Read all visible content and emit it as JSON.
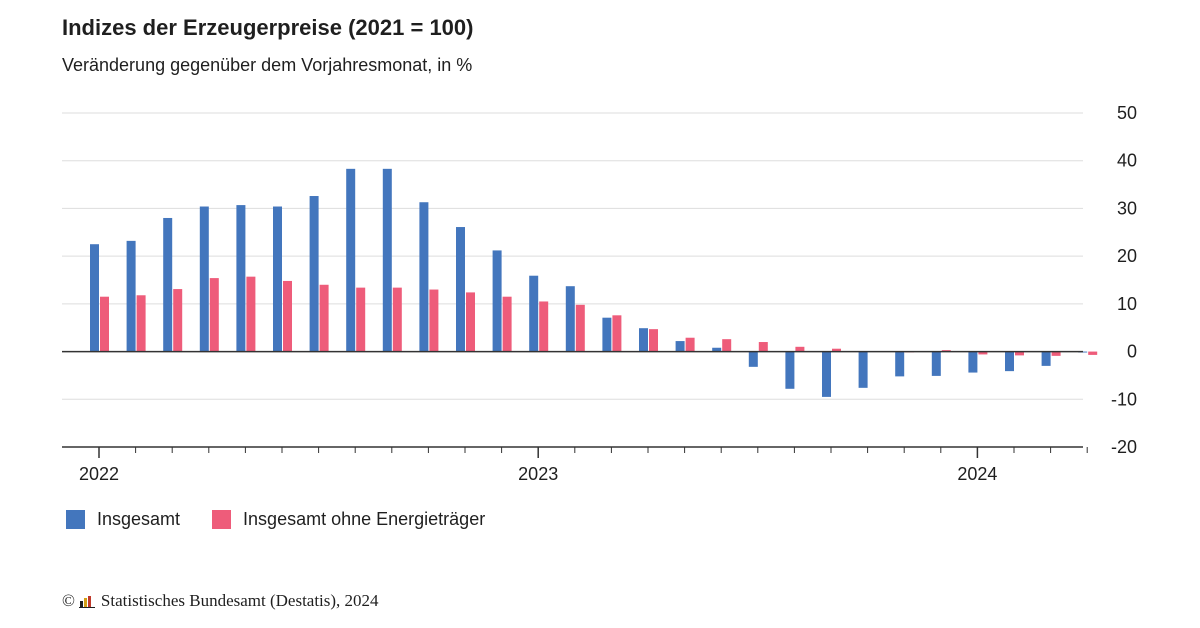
{
  "colors": {
    "series_1": "#4376bd",
    "series_2": "#ee5c7a",
    "grid": "#dddddd",
    "axis": "#333333"
  },
  "chart_data": {
    "type": "bar",
    "title": "Indizes der Erzeugerpreise (2021 = 100)",
    "subtitle": "Veränderung gegenüber dem Vorjahresmonat, in %",
    "xlabel": "",
    "ylabel": "",
    "ylim": [
      -20,
      50
    ],
    "yticks": [
      50,
      40,
      30,
      20,
      10,
      0,
      -10,
      -20
    ],
    "y_axis_position": "right",
    "grid": true,
    "legend_position": "bottom-left",
    "categories": [
      "2022-01",
      "2022-02",
      "2022-03",
      "2022-04",
      "2022-05",
      "2022-06",
      "2022-07",
      "2022-08",
      "2022-09",
      "2022-10",
      "2022-11",
      "2022-12",
      "2023-01",
      "2023-02",
      "2023-03",
      "2023-04",
      "2023-05",
      "2023-06",
      "2023-07",
      "2023-08",
      "2023-09",
      "2023-10",
      "2023-11",
      "2023-12",
      "2024-01",
      "2024-02",
      "2024-03",
      "2024-04"
    ],
    "year_labels": [
      {
        "label": "2022",
        "index": 0
      },
      {
        "label": "2023",
        "index": 12
      },
      {
        "label": "2024",
        "index": 24
      }
    ],
    "series": [
      {
        "name": "Insgesamt",
        "values": [
          22.5,
          23.2,
          28.0,
          30.4,
          30.7,
          30.4,
          32.6,
          38.3,
          38.3,
          31.3,
          26.1,
          21.2,
          15.9,
          13.7,
          7.1,
          4.9,
          2.2,
          0.8,
          -3.2,
          -7.8,
          -9.5,
          -7.6,
          -5.2,
          -5.1,
          -4.4,
          -4.1,
          -3.0,
          -0.2
        ]
      },
      {
        "name": "Insgesamt ohne Energieträger",
        "values": [
          11.5,
          11.8,
          13.1,
          15.4,
          15.7,
          14.8,
          14.0,
          13.4,
          13.4,
          13.0,
          12.4,
          11.5,
          10.5,
          9.8,
          7.6,
          4.7,
          2.9,
          2.6,
          2.0,
          1.0,
          0.6,
          0.1,
          -0.1,
          0.3,
          -0.6,
          -0.8,
          -0.9,
          -0.7
        ]
      }
    ]
  },
  "footer": {
    "copyright": "©",
    "source": "Statistisches Bundesamt (Destatis), 2024"
  }
}
